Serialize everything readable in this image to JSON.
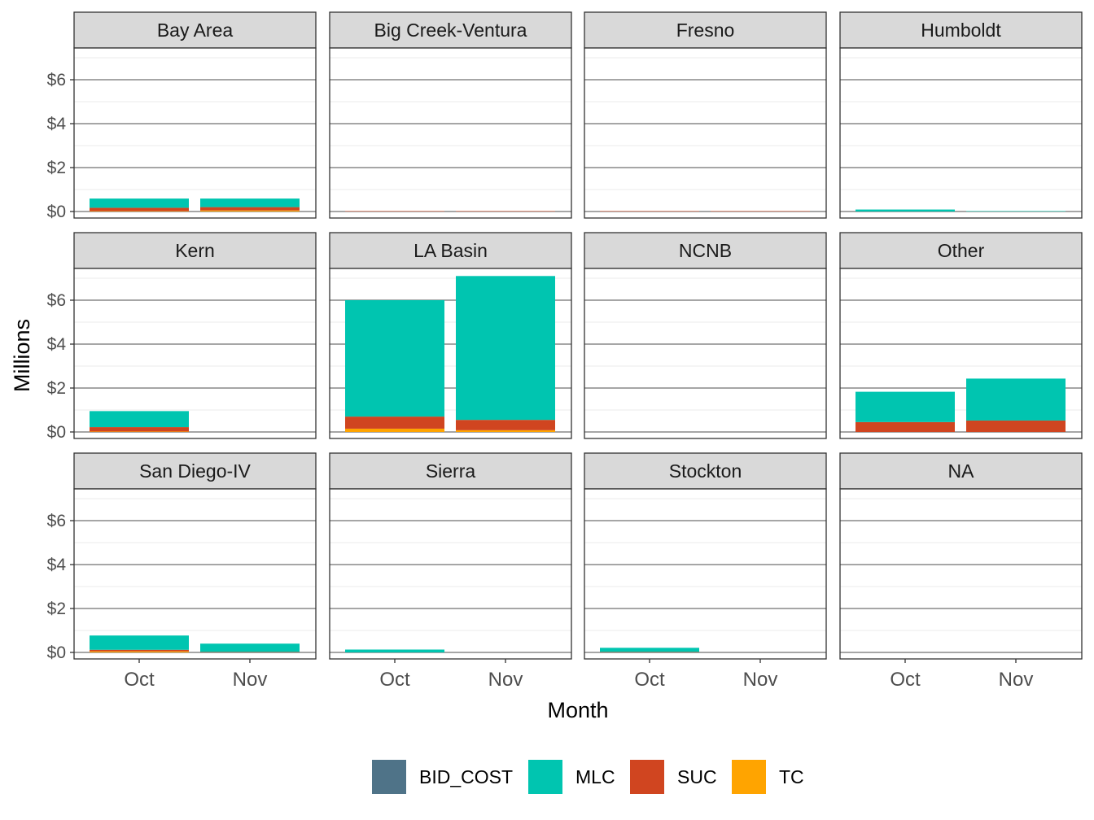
{
  "chart_data": {
    "type": "bar",
    "stacked": true,
    "faceted": true,
    "xlabel": "Month",
    "ylabel": "Millions",
    "categories": [
      "Oct",
      "Nov"
    ],
    "y_ticks": [
      "$0",
      "$2",
      "$4",
      "$6"
    ],
    "y_tick_values": [
      0,
      2,
      4,
      6
    ],
    "ylim": [
      -0.3,
      7.5
    ],
    "grid": true,
    "legend_position": "bottom",
    "stack_order": [
      "TC",
      "SUC",
      "MLC",
      "BID_COST"
    ],
    "series_colors": {
      "BID_COST": "#4f7388",
      "MLC": "#00c5b0",
      "SUC": "#d04520",
      "TC": "#ffa400"
    },
    "legend": [
      {
        "name": "BID_COST",
        "color": "#4f7388"
      },
      {
        "name": "MLC",
        "color": "#00c5b0"
      },
      {
        "name": "SUC",
        "color": "#d04520"
      },
      {
        "name": "TC",
        "color": "#ffa400"
      }
    ],
    "panels": [
      {
        "name": "Bay Area",
        "values": {
          "Oct": {
            "TC": 0.02,
            "SUC": 0.15,
            "MLC": 0.42,
            "BID_COST": 0
          },
          "Nov": {
            "TC": 0.05,
            "SUC": 0.15,
            "MLC": 0.39,
            "BID_COST": 0
          }
        }
      },
      {
        "name": "Big Creek-Ventura",
        "values": {
          "Oct": {
            "TC": 0,
            "SUC": 0.02,
            "MLC": 0,
            "BID_COST": 0
          },
          "Nov": {
            "TC": 0,
            "SUC": 0.02,
            "MLC": 0,
            "BID_COST": 0
          }
        }
      },
      {
        "name": "Fresno",
        "values": {
          "Oct": {
            "TC": 0,
            "SUC": 0.02,
            "MLC": 0,
            "BID_COST": 0
          },
          "Nov": {
            "TC": 0,
            "SUC": 0.02,
            "MLC": 0,
            "BID_COST": 0
          }
        }
      },
      {
        "name": "Humboldt",
        "values": {
          "Oct": {
            "TC": 0,
            "SUC": 0,
            "MLC": 0.09,
            "BID_COST": 0
          },
          "Nov": {
            "TC": 0,
            "SUC": 0,
            "MLC": 0.02,
            "BID_COST": 0
          }
        }
      },
      {
        "name": "Kern",
        "values": {
          "Oct": {
            "TC": 0.02,
            "SUC": 0.2,
            "MLC": 0.73,
            "BID_COST": 0
          },
          "Nov": {
            "TC": 0,
            "SUC": 0,
            "MLC": 0,
            "BID_COST": 0
          }
        }
      },
      {
        "name": "LA Basin",
        "values": {
          "Oct": {
            "TC": 0.15,
            "SUC": 0.55,
            "MLC": 5.3,
            "BID_COST": 0
          },
          "Nov": {
            "TC": 0.08,
            "SUC": 0.47,
            "MLC": 6.55,
            "BID_COST": 0
          }
        }
      },
      {
        "name": "NCNB",
        "values": {
          "Oct": {
            "TC": 0,
            "SUC": 0,
            "MLC": 0,
            "BID_COST": 0
          },
          "Nov": {
            "TC": 0,
            "SUC": 0,
            "MLC": 0,
            "BID_COST": 0
          }
        }
      },
      {
        "name": "Other",
        "values": {
          "Oct": {
            "TC": 0,
            "SUC": 0.45,
            "MLC": 1.38,
            "BID_COST": 0
          },
          "Nov": {
            "TC": 0,
            "SUC": 0.52,
            "MLC": 1.91,
            "BID_COST": 0
          }
        }
      },
      {
        "name": "San Diego-IV",
        "values": {
          "Oct": {
            "TC": 0.05,
            "SUC": 0.07,
            "MLC": 0.65,
            "BID_COST": 0
          },
          "Nov": {
            "TC": 0,
            "SUC": 0.02,
            "MLC": 0.38,
            "BID_COST": 0
          }
        }
      },
      {
        "name": "Sierra",
        "values": {
          "Oct": {
            "TC": 0,
            "SUC": 0,
            "MLC": 0.13,
            "BID_COST": 0
          },
          "Nov": {
            "TC": 0,
            "SUC": 0,
            "MLC": 0,
            "BID_COST": 0
          }
        }
      },
      {
        "name": "Stockton",
        "values": {
          "Oct": {
            "TC": 0,
            "SUC": 0.02,
            "MLC": 0.19,
            "BID_COST": 0
          },
          "Nov": {
            "TC": 0,
            "SUC": 0,
            "MLC": 0,
            "BID_COST": 0
          }
        }
      },
      {
        "name": "NA",
        "values": {
          "Oct": {
            "TC": 0,
            "SUC": 0,
            "MLC": 0,
            "BID_COST": 0
          },
          "Nov": {
            "TC": 0,
            "SUC": 0,
            "MLC": 0,
            "BID_COST": 0
          }
        }
      }
    ]
  }
}
